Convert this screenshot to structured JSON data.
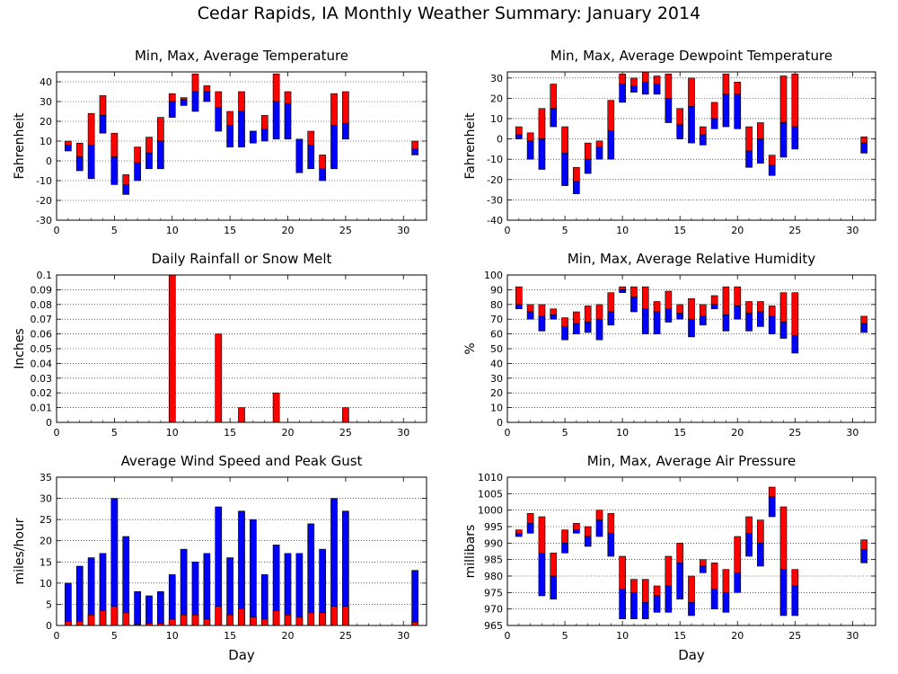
{
  "title": "Cedar Rapids, IA Monthly Weather Summary: January 2014",
  "colors": {
    "upper": "#ff0000",
    "lower": "#0000ff",
    "rain": "#ff0000",
    "gust": "#0000ff",
    "avg_wind": "#ff0000"
  },
  "chart_data": [
    {
      "id": "temp",
      "type": "bar",
      "style": "range-split",
      "title": "Min, Max, Average Temperature",
      "xlabel": "",
      "ylabel": "Fahrenheit",
      "xlim": [
        0,
        32
      ],
      "ylim": [
        -30,
        45
      ],
      "xticks": [
        0,
        5,
        10,
        15,
        20,
        25,
        30
      ],
      "yticks": [
        -30,
        -20,
        -10,
        0,
        10,
        20,
        30,
        40
      ],
      "grid": true,
      "days": [
        1,
        2,
        3,
        4,
        5,
        6,
        7,
        8,
        9,
        10,
        11,
        12,
        13,
        14,
        15,
        16,
        17,
        18,
        19,
        20,
        21,
        22,
        23,
        24,
        25,
        31
      ],
      "min": [
        5,
        -5,
        -9,
        14,
        -12,
        -17,
        -10,
        -4,
        -4,
        22,
        28,
        25,
        30,
        15,
        7,
        7,
        9,
        10,
        11,
        11,
        -6,
        -4,
        -10,
        -4,
        11,
        3
      ],
      "avg": [
        8,
        2,
        8,
        23,
        2,
        -12,
        -1,
        4,
        10,
        30,
        31,
        35,
        35,
        27,
        18,
        25,
        15,
        16,
        30,
        29,
        11,
        8,
        -4,
        18,
        19,
        6
      ],
      "max": [
        10,
        9,
        24,
        33,
        14,
        -7,
        7,
        12,
        22,
        34,
        32,
        44,
        38,
        35,
        25,
        35,
        15,
        23,
        44,
        35,
        10,
        15,
        3,
        34,
        35,
        10
      ]
    },
    {
      "id": "dewpoint",
      "type": "bar",
      "style": "range-split",
      "title": "Min, Max, Average Dewpoint Temperature",
      "xlabel": "",
      "ylabel": "Fahrenheit",
      "xlim": [
        0,
        32
      ],
      "ylim": [
        -40,
        33
      ],
      "xticks": [
        0,
        5,
        10,
        15,
        20,
        25,
        30
      ],
      "yticks": [
        -40,
        -30,
        -20,
        -10,
        0,
        10,
        20,
        30
      ],
      "grid": true,
      "days": [
        1,
        2,
        3,
        4,
        5,
        6,
        7,
        8,
        9,
        10,
        11,
        12,
        13,
        14,
        15,
        16,
        17,
        18,
        19,
        20,
        21,
        22,
        23,
        24,
        25,
        31
      ],
      "min": [
        0,
        -10,
        -15,
        6,
        -23,
        -27,
        -17,
        -10,
        -10,
        18,
        23,
        22,
        22,
        8,
        0,
        -2,
        -3,
        5,
        6,
        5,
        -14,
        -12,
        -18,
        -9,
        -5,
        -7
      ],
      "avg": [
        2,
        -1,
        0,
        15,
        -7,
        -21,
        -10,
        -4,
        4,
        27,
        26,
        28,
        27,
        20,
        7,
        16,
        2,
        10,
        22,
        22,
        -6,
        0,
        -13,
        8,
        6,
        -2
      ],
      "max": [
        6,
        3,
        15,
        27,
        6,
        -14,
        -2,
        -1,
        19,
        32,
        30,
        33,
        31,
        32,
        15,
        30,
        6,
        18,
        32,
        28,
        6,
        8,
        -8,
        31,
        32,
        1
      ]
    },
    {
      "id": "rain",
      "type": "bar",
      "style": "single",
      "title": "Daily Rainfall or Snow Melt",
      "xlabel": "",
      "ylabel": "Inches",
      "xlim": [
        0,
        32
      ],
      "ylim": [
        0,
        0.1
      ],
      "xticks": [
        0,
        5,
        10,
        15,
        20,
        25,
        30
      ],
      "yticks": [
        0,
        0.01,
        0.02,
        0.03,
        0.04,
        0.05,
        0.06,
        0.07,
        0.08,
        0.09,
        0.1
      ],
      "ytick_labels": [
        "0",
        "0.01",
        "0.02",
        "0.03",
        "0.04",
        "0.05",
        "0.06",
        "0.07",
        "0.08",
        "0.09",
        "0.1"
      ],
      "grid": true,
      "days": [
        10,
        14,
        16,
        19,
        25
      ],
      "values": [
        0.1,
        0.06,
        0.01,
        0.02,
        0.01
      ]
    },
    {
      "id": "humidity",
      "type": "bar",
      "style": "range-split",
      "title": "Min, Max, Average Relative Humidity",
      "xlabel": "",
      "ylabel": "%",
      "xlim": [
        0,
        32
      ],
      "ylim": [
        0,
        100
      ],
      "xticks": [
        0,
        5,
        10,
        15,
        20,
        25,
        30
      ],
      "yticks": [
        0,
        10,
        20,
        30,
        40,
        50,
        60,
        70,
        80,
        90,
        100
      ],
      "grid": true,
      "days": [
        1,
        2,
        3,
        4,
        5,
        6,
        7,
        8,
        9,
        10,
        11,
        12,
        13,
        14,
        15,
        16,
        17,
        18,
        19,
        20,
        21,
        22,
        23,
        24,
        25,
        31
      ],
      "min": [
        77,
        70,
        62,
        70,
        56,
        60,
        61,
        56,
        66,
        88,
        75,
        60,
        60,
        68,
        70,
        58,
        66,
        77,
        62,
        70,
        62,
        65,
        60,
        57,
        47,
        61
      ],
      "avg": [
        80,
        75,
        72,
        73,
        65,
        67,
        68,
        70,
        75,
        90,
        85,
        77,
        75,
        77,
        74,
        70,
        72,
        80,
        73,
        79,
        74,
        75,
        72,
        68,
        59,
        67
      ],
      "max": [
        92,
        80,
        80,
        77,
        71,
        75,
        79,
        80,
        88,
        92,
        92,
        92,
        82,
        89,
        80,
        84,
        80,
        86,
        92,
        92,
        82,
        82,
        79,
        88,
        88,
        72
      ]
    },
    {
      "id": "wind",
      "type": "bar",
      "style": "overlay",
      "title": "Average Wind Speed and Peak Gust",
      "xlabel": "Day",
      "ylabel": "miles/hour",
      "xlim": [
        0,
        32
      ],
      "ylim": [
        0,
        35
      ],
      "xticks": [
        0,
        5,
        10,
        15,
        20,
        25,
        30
      ],
      "yticks": [
        0,
        5,
        10,
        15,
        20,
        25,
        30,
        35
      ],
      "grid": true,
      "days": [
        1,
        2,
        3,
        4,
        5,
        6,
        7,
        8,
        9,
        10,
        11,
        12,
        13,
        14,
        15,
        16,
        17,
        18,
        19,
        20,
        21,
        22,
        23,
        24,
        25,
        31
      ],
      "peak_gust": [
        10,
        14,
        16,
        17,
        30,
        21,
        8,
        7,
        8,
        12,
        18,
        15,
        17,
        28,
        16,
        27,
        25,
        12,
        19,
        17,
        17,
        24,
        18,
        30,
        27,
        13
      ],
      "avg_speed": [
        1,
        1,
        2.5,
        3.5,
        4.5,
        3,
        0.3,
        0.5,
        0.5,
        1.5,
        2.5,
        2.5,
        1.5,
        4.5,
        2.5,
        4,
        2,
        1.5,
        3.5,
        2.5,
        2,
        3,
        3,
        4.5,
        4.5,
        0.8
      ]
    },
    {
      "id": "pressure",
      "type": "bar",
      "style": "range-split",
      "title": "Min, Max, Average Air Pressure",
      "xlabel": "Day",
      "ylabel": "millibars",
      "xlim": [
        0,
        32
      ],
      "ylim": [
        965,
        1010
      ],
      "xticks": [
        0,
        5,
        10,
        15,
        20,
        25,
        30
      ],
      "yticks": [
        965,
        970,
        975,
        980,
        985,
        990,
        995,
        1000,
        1005,
        1010
      ],
      "grid": true,
      "days": [
        1,
        2,
        3,
        4,
        5,
        6,
        7,
        8,
        9,
        10,
        11,
        12,
        13,
        14,
        15,
        16,
        17,
        18,
        19,
        20,
        21,
        22,
        23,
        24,
        25,
        31
      ],
      "min": [
        992,
        993,
        974,
        973,
        987,
        993,
        989,
        992,
        986,
        967,
        967,
        967,
        969,
        969,
        973,
        968,
        981,
        970,
        969,
        975,
        986,
        983,
        998,
        968,
        968,
        984
      ],
      "avg": [
        993,
        996,
        987,
        980,
        990,
        994,
        992,
        997,
        993,
        976,
        975,
        972,
        974,
        977,
        984,
        972,
        983,
        976,
        975,
        981,
        993,
        990,
        1004,
        982,
        977,
        988
      ],
      "max": [
        994,
        999,
        998,
        987,
        994,
        996,
        995,
        1000,
        999,
        986,
        979,
        979,
        977,
        986,
        990,
        980,
        985,
        984,
        982,
        992,
        998,
        997,
        1007,
        1001,
        982,
        991
      ]
    }
  ]
}
